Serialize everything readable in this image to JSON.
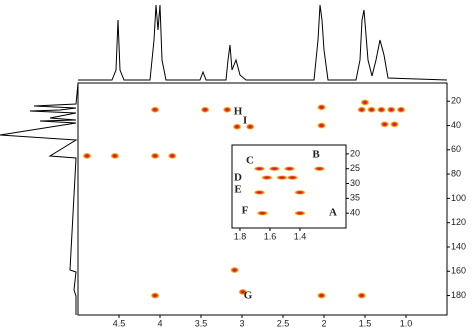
{
  "chart_data": [
    {
      "type": "scatter",
      "x_inverted": true,
      "y_inverted": true,
      "xlim": [
        5.0,
        0.5
      ],
      "xticks": [
        4.5,
        4.0,
        3.5,
        3.0,
        2.5,
        2.0,
        1.5,
        {
          "value": 1,
          "label": "1.0"
        }
      ],
      "ylim": [
        5,
        196
      ],
      "yticks": [
        20,
        40,
        60,
        80,
        100,
        120,
        140,
        160,
        180
      ],
      "x": [
        4.06,
        4.06,
        4.06,
        4.89,
        4.55,
        3.85,
        3.45,
        3.18,
        3.06,
        2.9,
        3.09,
        2.03,
        2.03,
        2.03,
        2.99,
        1.54,
        1.42,
        1.3,
        1.18,
        1.06,
        1.5,
        1.26,
        1.14,
        1.54
      ],
      "values": [
        27,
        65,
        180,
        65,
        65,
        65,
        27,
        27,
        41,
        41,
        159,
        25,
        40,
        180,
        177,
        27,
        27,
        27,
        27,
        27,
        21,
        39,
        39,
        180
      ],
      "annotations": [
        "H",
        "I",
        "G"
      ]
    },
    {
      "type": "scatter",
      "x_inverted": true,
      "y_inverted": true,
      "xlim": [
        1.853,
        1.093
      ],
      "xticks": [
        1.8,
        1.6,
        1.4
      ],
      "ylim": [
        17,
        45
      ],
      "yticks": [
        20,
        25,
        30,
        35,
        40
      ],
      "x": [
        1.67,
        1.57,
        1.47,
        1.27,
        1.62,
        1.52,
        1.45,
        1.67,
        1.65,
        1.4,
        1.4
      ],
      "values": [
        25,
        25,
        25,
        25,
        28,
        28,
        28,
        33,
        40,
        40,
        33
      ],
      "annotations": [
        "C",
        "D",
        "E",
        "F",
        "B",
        "A"
      ]
    }
  ]
}
